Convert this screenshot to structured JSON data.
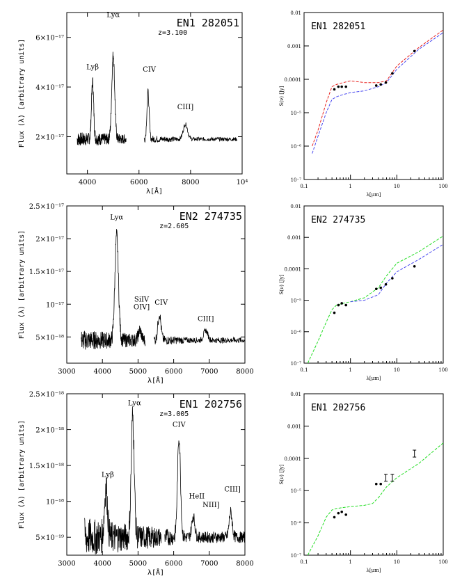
{
  "chart_data": [
    {
      "type": "line",
      "panel": "spectrum",
      "title": "EN1  282051",
      "redshift": "z=3.100",
      "xlabel": "λ[Å]",
      "ylabel": "Flux (λ) [arbitrary units]",
      "xlim": [
        3200,
        10000
      ],
      "ylim": [
        5e-18,
        7e-17
      ],
      "xticks": [
        4000,
        6000,
        8000,
        10000
      ],
      "xtick_labels": [
        "4000",
        "6000",
        "8000",
        "10⁴"
      ],
      "yticks": [
        2e-17,
        4e-17,
        6e-17
      ],
      "ytick_labels": [
        "2×10⁻¹⁷",
        "4×10⁻¹⁷",
        "6×10⁻¹⁷"
      ],
      "line_labels": [
        {
          "text": "Lyα",
          "x": 5000,
          "y": 6.7e-17
        },
        {
          "text": "Lyβ",
          "x": 4200,
          "y": 4.6e-17
        },
        {
          "text": "CIV",
          "x": 6400,
          "y": 4.5e-17
        },
        {
          "text": "CIII]",
          "x": 7800,
          "y": 3e-17
        }
      ],
      "features": {
        "base": 1.9e-17,
        "segments": [
          [
            3600,
            5500
          ],
          [
            6200,
            9800
          ]
        ],
        "peaks": [
          {
            "x": 4200,
            "h": 2.3e-17,
            "w": 60
          },
          {
            "x": 5000,
            "h": 3.4e-17,
            "w": 80
          },
          {
            "x": 6350,
            "h": 1.9e-17,
            "w": 60
          },
          {
            "x": 7800,
            "h": 6e-18,
            "w": 120
          }
        ],
        "noise": 4.5e-18
      }
    },
    {
      "type": "line",
      "panel": "sed",
      "title": "EN1  282051",
      "xlabel": "λ[μm]",
      "ylabel": "S(ν) [Jy]",
      "xscale": "log",
      "yscale": "log",
      "xlim": [
        0.1,
        100
      ],
      "ylim": [
        1e-07,
        0.01
      ],
      "xticks": [
        0.1,
        1,
        10,
        100
      ],
      "xtick_labels": [
        "0.1",
        "1",
        "10",
        "100"
      ],
      "yticks": [
        1e-07,
        1e-06,
        1e-05,
        0.0001,
        0.001,
        0.01
      ],
      "ytick_labels": [
        "10⁻⁷",
        "10⁻⁶",
        "10⁻⁵",
        "0.0001",
        "0.001",
        "0.01"
      ],
      "series": [
        {
          "name": "model-red",
          "color": "#e8201c",
          "style": "dashed",
          "x": [
            0.15,
            0.2,
            0.3,
            0.4,
            0.5,
            0.7,
            1,
            2,
            4,
            6,
            10,
            30,
            100
          ],
          "y": [
            1e-06,
            3e-06,
            2e-05,
            6e-05,
            7e-05,
            8e-05,
            9e-05,
            8e-05,
            8e-05,
            9e-05,
            0.00025,
            0.0009,
            0.003
          ]
        },
        {
          "name": "model-blue",
          "color": "#4a4af0",
          "style": "dashed",
          "x": [
            0.15,
            0.2,
            0.3,
            0.4,
            0.5,
            0.7,
            1,
            2,
            4,
            6,
            10,
            30,
            100
          ],
          "y": [
            6e-07,
            2e-06,
            1e-05,
            2.5e-05,
            3e-05,
            3.5e-05,
            4e-05,
            4.5e-05,
            6e-05,
            8e-05,
            0.0002,
            0.0008,
            0.0025
          ]
        },
        {
          "name": "photometry",
          "color": "#000000",
          "style": "points",
          "x": [
            0.45,
            0.55,
            0.65,
            0.8,
            3.6,
            4.5,
            5.8,
            8,
            24
          ],
          "y": [
            5e-05,
            6e-05,
            6e-05,
            6e-05,
            6.5e-05,
            7e-05,
            8e-05,
            0.00015,
            0.0007
          ]
        }
      ]
    },
    {
      "type": "line",
      "panel": "spectrum",
      "title": "EN2  274735",
      "redshift": "z=2.605",
      "xlabel": "λ[Å]",
      "ylabel": "Flux (λ) [arbitrary units]",
      "xlim": [
        3000,
        8000
      ],
      "ylim": [
        1e-18,
        2.5e-17
      ],
      "xticks": [
        3000,
        4000,
        5000,
        6000,
        7000,
        8000
      ],
      "xtick_labels": [
        "3000",
        "4000",
        "5000",
        "6000",
        "7000",
        "8000"
      ],
      "yticks": [
        5e-18,
        1e-17,
        1.5e-17,
        2e-17,
        2.5e-17
      ],
      "ytick_labels": [
        "5×10⁻¹⁸",
        "10⁻¹⁷",
        "1.5×10⁻¹⁷",
        "2×10⁻¹⁷",
        "2.5×10⁻¹⁷"
      ],
      "line_labels": [
        {
          "text": "Lyα",
          "x": 4400,
          "y": 2.25e-17
        },
        {
          "text": "SiIV",
          "x": 5100,
          "y": 1e-17
        },
        {
          "text": "OIV]",
          "x": 5100,
          "y": 8.8e-18
        },
        {
          "text": "CIV",
          "x": 5650,
          "y": 9.5e-18
        },
        {
          "text": "CIII]",
          "x": 6900,
          "y": 7e-18
        }
      ],
      "features": {
        "base": 4.5e-18,
        "segments": [
          [
            3400,
            5200
          ],
          [
            5450,
            8000
          ]
        ],
        "peaks": [
          {
            "x": 4400,
            "h": 1.6e-17,
            "w": 70
          },
          {
            "x": 5050,
            "h": 1.5e-18,
            "w": 60
          },
          {
            "x": 5600,
            "h": 4e-18,
            "w": 60
          },
          {
            "x": 6900,
            "h": 1.5e-18,
            "w": 80
          }
        ],
        "noise": 2.5e-18
      }
    },
    {
      "type": "line",
      "panel": "sed",
      "title": "EN2  274735",
      "xlabel": "λ[μm]",
      "ylabel": "S(ν) [Jy]",
      "xscale": "log",
      "yscale": "log",
      "xlim": [
        0.1,
        100
      ],
      "ylim": [
        1e-07,
        0.01
      ],
      "xticks": [
        0.1,
        1,
        10,
        100
      ],
      "xtick_labels": [
        "0.1",
        "1",
        "10",
        "100"
      ],
      "yticks": [
        1e-07,
        1e-06,
        1e-05,
        0.0001,
        0.001,
        0.01
      ],
      "ytick_labels": [
        "10⁻⁷",
        "10⁻⁶",
        "10⁻⁵",
        "0.0001",
        "0.001",
        "0.01"
      ],
      "series": [
        {
          "name": "model-green",
          "color": "#22dd22",
          "style": "dashed",
          "x": [
            0.12,
            0.2,
            0.3,
            0.4,
            0.5,
            0.7,
            1,
            2,
            4,
            6,
            10,
            30,
            100
          ],
          "y": [
            1e-07,
            5e-07,
            2e-06,
            5e-06,
            7e-06,
            8e-06,
            9e-06,
            1.2e-05,
            2.5e-05,
            6e-05,
            0.00015,
            0.00035,
            0.0011
          ]
        },
        {
          "name": "model-blue",
          "color": "#4a4af0",
          "style": "dashed",
          "x": [
            1,
            2,
            4,
            6,
            10,
            30,
            100
          ],
          "y": [
            9e-06,
            1e-05,
            1.5e-05,
            3.5e-05,
            8e-05,
            0.0002,
            0.0006
          ]
        },
        {
          "name": "photometry",
          "color": "#000000",
          "style": "points",
          "x": [
            0.45,
            0.55,
            0.65,
            0.8,
            3.6,
            4.5,
            5.8,
            8,
            24
          ],
          "y": [
            4e-06,
            7e-06,
            8e-06,
            7e-06,
            2.3e-05,
            2.5e-05,
            3.2e-05,
            5e-05,
            0.00012
          ]
        }
      ]
    },
    {
      "type": "line",
      "panel": "spectrum",
      "title": "EN1  202756",
      "redshift": "z=3.005",
      "xlabel": "λ[Å]",
      "ylabel": "Flux (λ) [arbitrary units]",
      "xlim": [
        3000,
        8000
      ],
      "ylim": [
        2.5e-19,
        2.5e-18
      ],
      "xticks": [
        3000,
        4000,
        5000,
        6000,
        7000,
        8000
      ],
      "xtick_labels": [
        "3000",
        "4000",
        "5000",
        "6000",
        "7000",
        "8000"
      ],
      "yticks": [
        5e-19,
        1e-18,
        1.5e-18,
        2e-18,
        2.5e-18
      ],
      "ytick_labels": [
        "5×10⁻¹⁹",
        "10⁻¹⁸",
        "1.5×10⁻¹⁸",
        "2×10⁻¹⁸",
        "2.5×10⁻¹⁸"
      ],
      "line_labels": [
        {
          "text": "Lyα",
          "x": 4900,
          "y": 2.3e-18
        },
        {
          "text": "Lyβ",
          "x": 4150,
          "y": 1.3e-18
        },
        {
          "text": "CIV",
          "x": 6150,
          "y": 2e-18
        },
        {
          "text": "HeII",
          "x": 6650,
          "y": 1e-18
        },
        {
          "text": "NIII]",
          "x": 7050,
          "y": 8.8e-19
        },
        {
          "text": "CIII]",
          "x": 7650,
          "y": 1.1e-18
        }
      ],
      "features": {
        "base": 5e-19,
        "segments": [
          [
            3500,
            5650
          ],
          [
            5750,
            8000
          ]
        ],
        "peaks": [
          {
            "x": 4100,
            "h": 7e-19,
            "w": 60
          },
          {
            "x": 4850,
            "h": 1.7e-18,
            "w": 60
          },
          {
            "x": 6150,
            "h": 1.4e-18,
            "w": 60
          },
          {
            "x": 6550,
            "h": 3e-19,
            "w": 60
          },
          {
            "x": 7600,
            "h": 3.5e-19,
            "w": 60
          }
        ],
        "noise": 4.5e-19
      }
    },
    {
      "type": "line",
      "panel": "sed",
      "title": "EN1  202756",
      "xlabel": "λ[μm]",
      "ylabel": "S(ν) [Jy]",
      "xscale": "log",
      "yscale": "log",
      "xlim": [
        0.1,
        100
      ],
      "ylim": [
        1e-07,
        0.01
      ],
      "xticks": [
        0.1,
        1,
        10,
        100
      ],
      "xtick_labels": [
        "0.1",
        "1",
        "10",
        "100"
      ],
      "yticks": [
        1e-07,
        1e-06,
        1e-05,
        0.0001,
        0.001,
        0.01
      ],
      "ytick_labels": [
        "10⁻⁷",
        "10⁻⁶",
        "10⁻⁵",
        "0.0001",
        "0.001",
        "0.01"
      ],
      "series": [
        {
          "name": "model-green",
          "color": "#22dd22",
          "style": "dashed",
          "x": [
            0.12,
            0.2,
            0.3,
            0.4,
            0.5,
            0.7,
            1,
            2,
            3,
            4,
            6,
            10,
            30,
            100
          ],
          "y": [
            1e-07,
            4e-07,
            1.5e-06,
            2.5e-06,
            2.8e-06,
            3e-06,
            3.2e-06,
            3.5e-06,
            4e-06,
            6e-06,
            1.3e-05,
            2.5e-05,
            7e-05,
            0.0003
          ]
        },
        {
          "name": "photometry",
          "color": "#000000",
          "style": "points",
          "x": [
            0.45,
            0.55,
            0.65,
            0.8,
            3.6,
            4.5
          ],
          "y": [
            1.5e-06,
            2e-06,
            2.2e-06,
            1.8e-06,
            1.6e-05,
            1.6e-05
          ]
        },
        {
          "name": "upper-limits",
          "color": "#000000",
          "style": "limits",
          "x": [
            5.8,
            8,
            24
          ],
          "y": [
            2.5e-05,
            2.5e-05,
            0.00014
          ]
        }
      ]
    }
  ]
}
